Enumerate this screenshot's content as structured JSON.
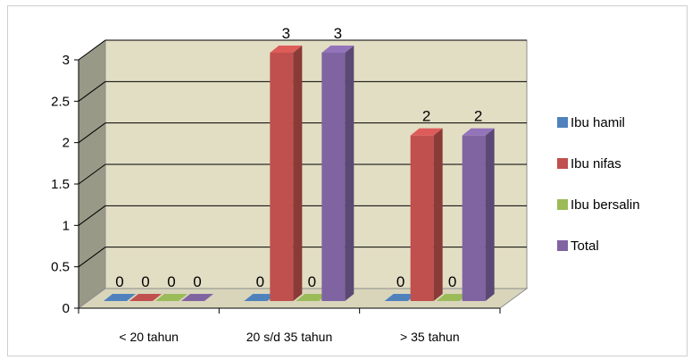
{
  "chart_data": {
    "type": "bar",
    "categories": [
      "< 20 tahun",
      "20 s/d 35 tahun",
      "> 35 tahun"
    ],
    "series": [
      {
        "name": "Ibu hamil",
        "values": [
          0,
          0,
          0
        ]
      },
      {
        "name": "Ibu nifas",
        "values": [
          0,
          3,
          2
        ]
      },
      {
        "name": "Ibu bersalin",
        "values": [
          0,
          0,
          0
        ]
      },
      {
        "name": "Total",
        "values": [
          0,
          3,
          2
        ]
      }
    ],
    "data_labels": [
      [
        "0",
        "0",
        "0"
      ],
      [
        "0",
        "3",
        "2"
      ],
      [
        "0",
        "0",
        "0"
      ],
      [
        "0",
        "3",
        "2"
      ]
    ],
    "ylim": [
      0,
      3
    ],
    "yticks": [
      "0",
      "0.5",
      "1",
      "1.5",
      "2",
      "2.5",
      "3"
    ],
    "title": "",
    "xlabel": "",
    "ylabel": "",
    "grid": true,
    "legend_position": "right",
    "colors": {
      "Ibu hamil": "#4f81bd",
      "Ibu nifas": "#c0504d",
      "Ibu bersalin": "#9bbb59",
      "Total": "#8064a2",
      "wall": "#e2dec4",
      "side_wall": "#999987",
      "floor": "#d9d5bb"
    }
  }
}
